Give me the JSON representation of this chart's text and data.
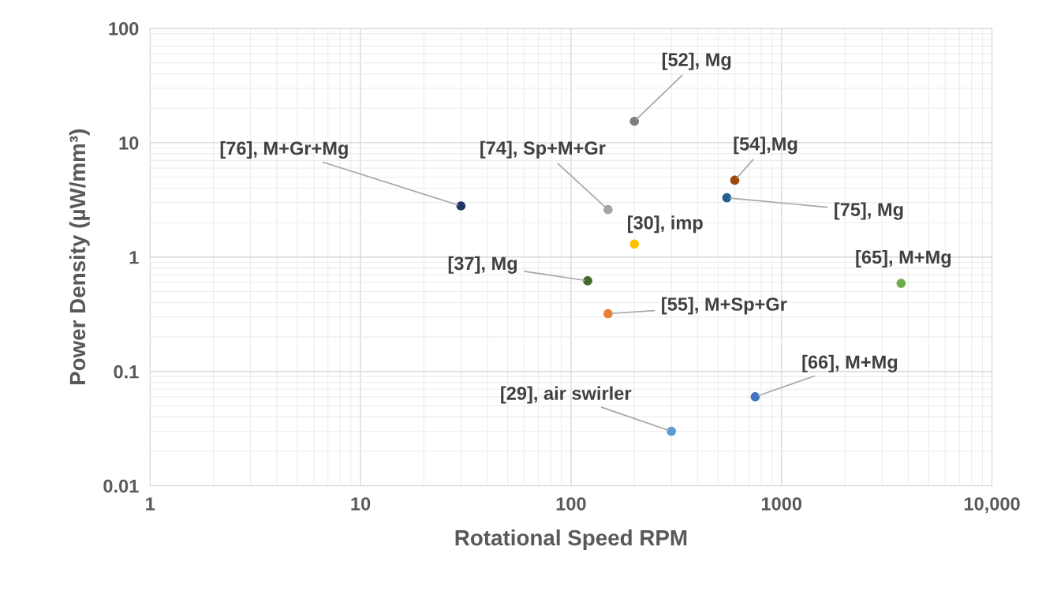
{
  "chart_data": {
    "type": "scatter",
    "xlabel": "Rotational Speed RPM",
    "ylabel": "Power Density (µW/mm³)",
    "x": [
      30,
      200,
      150,
      200,
      600,
      550,
      3700,
      120,
      150,
      750,
      300
    ],
    "values": [
      2.8,
      15.4,
      2.6,
      1.3,
      4.7,
      3.3,
      0.59,
      0.62,
      0.32,
      0.06,
      0.03
    ],
    "colors": [
      "#1f3864",
      "#7f7f7f",
      "#a5a5a5",
      "#ffc000",
      "#9e480e",
      "#255e91",
      "#70ad47",
      "#43682b",
      "#ed7d31",
      "#4472c4",
      "#5b9bd5"
    ],
    "annotations": [
      {
        "text": "[76], M+Gr+Mg",
        "x": 30,
        "y": 2.8
      },
      {
        "text": "[52], Mg",
        "x": 200,
        "y": 15.4
      },
      {
        "text": "[74], Sp+M+Gr",
        "x": 150,
        "y": 2.6
      },
      {
        "text": "[30], imp",
        "x": 200,
        "y": 1.3
      },
      {
        "text": "[54],Mg",
        "x": 600,
        "y": 4.7
      },
      {
        "text": "[75], Mg",
        "x": 550,
        "y": 3.3
      },
      {
        "text": "[65], M+Mg",
        "x": 3700,
        "y": 0.59
      },
      {
        "text": "[37], Mg",
        "x": 120,
        "y": 0.62
      },
      {
        "text": "[55], M+Sp+Gr",
        "x": 150,
        "y": 0.32
      },
      {
        "text": "[66], M+Mg",
        "x": 750,
        "y": 0.06
      },
      {
        "text": "[29], air swirler",
        "x": 300,
        "y": 0.03
      }
    ],
    "log": "xy",
    "xlim": [
      1,
      10000
    ],
    "ylim": [
      0.01,
      100
    ],
    "xticks": [
      1,
      10,
      100,
      1000,
      {
        "value": 10000,
        "label": "10,000"
      }
    ],
    "yticks": [
      0.01,
      0.1,
      1,
      10,
      100
    ],
    "grid": true,
    "marker": "circle",
    "legend": false
  }
}
